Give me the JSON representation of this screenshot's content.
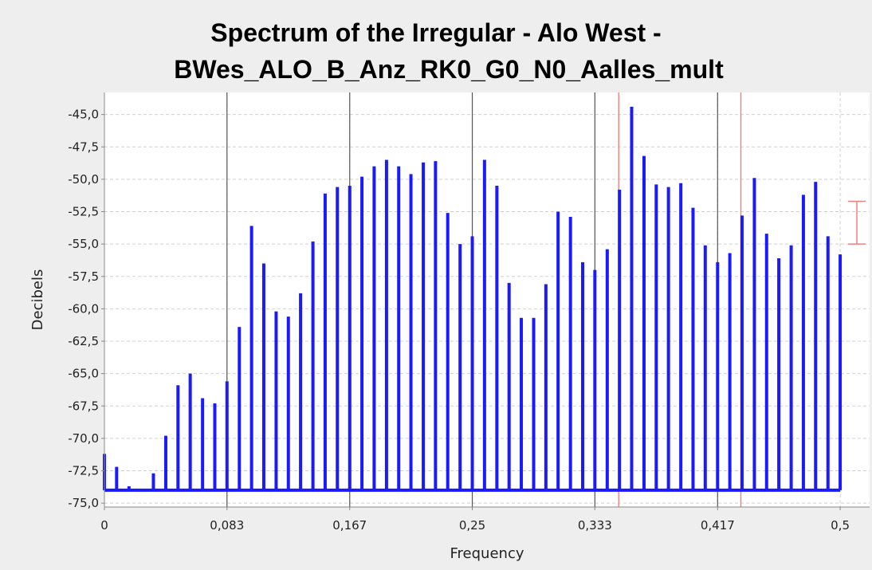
{
  "chart_data": {
    "type": "bar",
    "title_lines": [
      "Spectrum of the Irregular - Alo West -",
      "BWes_ALO_B_Anz_RK0_G0_N0_Aalles_mult"
    ],
    "xlabel": "Frequency",
    "ylabel": "Decibels",
    "xlim": [
      0,
      0.52
    ],
    "ylim": [
      -75.3,
      -43.3
    ],
    "baseline": -74.0,
    "x_ticks": [
      {
        "value": 0,
        "label": "0"
      },
      {
        "value": 0.0833,
        "label": "0,083"
      },
      {
        "value": 0.1667,
        "label": "0,167"
      },
      {
        "value": 0.25,
        "label": "0,25"
      },
      {
        "value": 0.3333,
        "label": "0,333"
      },
      {
        "value": 0.4167,
        "label": "0,417"
      },
      {
        "value": 0.5,
        "label": "0,5"
      }
    ],
    "y_ticks": [
      {
        "value": -45.0,
        "label": "-45,0"
      },
      {
        "value": -47.5,
        "label": "-47,5"
      },
      {
        "value": -50.0,
        "label": "-50,0"
      },
      {
        "value": -52.5,
        "label": "-52,5"
      },
      {
        "value": -55.0,
        "label": "-55,0"
      },
      {
        "value": -57.5,
        "label": "-57,5"
      },
      {
        "value": -60.0,
        "label": "-60,0"
      },
      {
        "value": -62.5,
        "label": "-62,5"
      },
      {
        "value": -65.0,
        "label": "-65,0"
      },
      {
        "value": -67.5,
        "label": "-67,5"
      },
      {
        "value": -70.0,
        "label": "-70,0"
      },
      {
        "value": -72.5,
        "label": "-72,5"
      },
      {
        "value": -75.0,
        "label": "-75,0"
      }
    ],
    "grid": true,
    "vertical_markers_dark": [
      0.0833,
      0.1667,
      0.25,
      0.3333,
      0.4167
    ],
    "vertical_markers_red": [
      0.3495,
      0.4325
    ],
    "error_bar": {
      "low": -55.0,
      "high": -51.7
    },
    "series": [
      {
        "color": "#1a1aff",
        "x": [
          0,
          0.0083,
          0.0167,
          0.025,
          0.0333,
          0.0417,
          0.05,
          0.0583,
          0.0667,
          0.075,
          0.0833,
          0.0917,
          0.1,
          0.1083,
          0.1167,
          0.125,
          0.1333,
          0.1417,
          0.15,
          0.1583,
          0.1667,
          0.175,
          0.1833,
          0.1917,
          0.2,
          0.2083,
          0.2167,
          0.225,
          0.2333,
          0.2417,
          0.25,
          0.2583,
          0.2667,
          0.275,
          0.2833,
          0.2917,
          0.3,
          0.3083,
          0.3167,
          0.325,
          0.3333,
          0.3417,
          0.35,
          0.3583,
          0.3667,
          0.375,
          0.3833,
          0.3917,
          0.4,
          0.4083,
          0.4167,
          0.425,
          0.4333,
          0.4417,
          0.45,
          0.4583,
          0.4667,
          0.475,
          0.4833,
          0.4917,
          0.5
        ],
        "values": [
          -71.2,
          -72.2,
          -73.7,
          -73.9,
          -72.7,
          -69.8,
          -65.9,
          -65.0,
          -66.9,
          -67.3,
          -65.6,
          -61.4,
          -53.6,
          -56.5,
          -60.2,
          -60.6,
          -58.8,
          -54.8,
          -51.1,
          -50.6,
          -50.5,
          -49.8,
          -49.0,
          -48.5,
          -49.0,
          -49.6,
          -48.7,
          -48.6,
          -52.6,
          -55.0,
          -54.4,
          -48.5,
          -50.5,
          -58.0,
          -60.7,
          -60.7,
          -58.1,
          -52.5,
          -52.9,
          -56.4,
          -57.0,
          -55.4,
          -50.8,
          -44.4,
          -48.2,
          -50.4,
          -50.6,
          -50.3,
          -52.2,
          -55.1,
          -56.4,
          -55.7,
          -52.8,
          -49.9,
          -54.2,
          -56.1,
          -55.1,
          -51.2,
          -50.2,
          -54.4,
          -55.8
        ]
      }
    ]
  }
}
